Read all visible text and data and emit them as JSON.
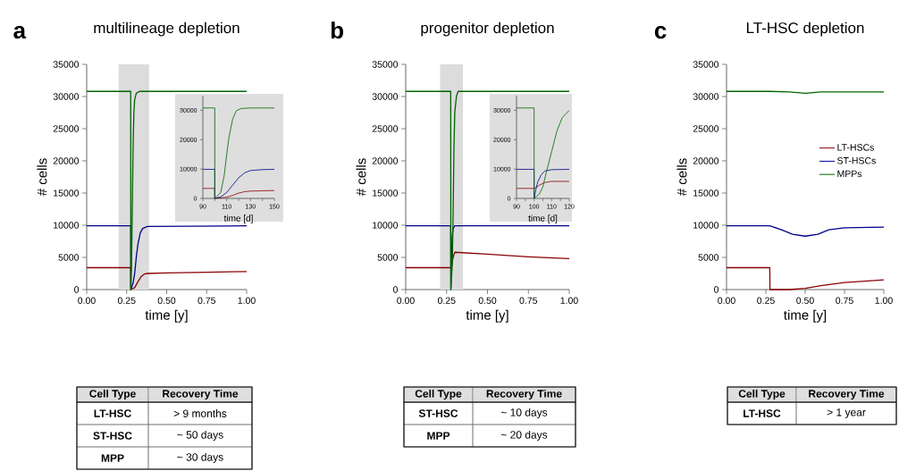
{
  "chart_data": [
    {
      "type": "line",
      "title": "multilineage depletion",
      "xlabel": "time [y]",
      "ylabel": "# cells",
      "annotations": [
        "a"
      ],
      "xlim": [
        0,
        1
      ],
      "ylim": [
        0,
        35000
      ],
      "xticks": [
        {
          "value": 0,
          "label": "0.00"
        },
        {
          "value": 0.25,
          "label": "0.25"
        },
        {
          "value": 0.5,
          "label": "0.50"
        },
        {
          "value": 0.75,
          "label": "0.75"
        },
        {
          "value": 1,
          "label": "1.00"
        }
      ],
      "yticks": [
        0,
        5000,
        10000,
        15000,
        20000,
        25000,
        30000,
        35000
      ],
      "bands": [
        {
          "axis": "x",
          "from": 0.2,
          "to": 0.39,
          "color": "#dcdcdc"
        }
      ],
      "series": [
        {
          "color": "#8b0000",
          "x": [
            0,
            0.275,
            0.276,
            0.3,
            0.32,
            0.34,
            0.36,
            0.38,
            0.5,
            0.75,
            1
          ],
          "values": [
            3400,
            3400,
            0,
            300,
            1200,
            2000,
            2400,
            2500,
            2600,
            2700,
            2800
          ]
        },
        {
          "color": "#00008b",
          "x": [
            0,
            0.275,
            0.276,
            0.29,
            0.3,
            0.31,
            0.32,
            0.335,
            0.35,
            0.38,
            1
          ],
          "values": [
            9900,
            9900,
            0,
            1000,
            2500,
            5000,
            7000,
            8800,
            9500,
            9800,
            9900
          ]
        },
        {
          "color": "#006400",
          "x": [
            0,
            0.275,
            0.276,
            0.28,
            0.285,
            0.29,
            0.295,
            0.3,
            0.31,
            0.33,
            1
          ],
          "values": [
            30800,
            30800,
            0,
            3000,
            12000,
            22000,
            27500,
            29500,
            30500,
            30800,
            30800
          ]
        }
      ]
    },
    {
      "type": "line",
      "xlabel": "time [d]",
      "xlim": [
        90,
        150
      ],
      "ylim": [
        0,
        35000
      ],
      "xticks": [
        90,
        {
          "value": 100,
          "label": null
        },
        110,
        {
          "value": 120,
          "label": null
        },
        130,
        {
          "value": 140,
          "label": null
        },
        150
      ],
      "yticks": [
        0,
        10000,
        20000,
        30000
      ],
      "series": [
        {
          "color": "#8b0000",
          "x": [
            90,
            100,
            100.01,
            110,
            115,
            120,
            125,
            130,
            140,
            150
          ],
          "values": [
            3400,
            3400,
            0,
            400,
            1000,
            1800,
            2300,
            2500,
            2600,
            2700
          ]
        },
        {
          "color": "#00008b",
          "x": [
            90,
            100,
            100.01,
            105,
            110,
            115,
            120,
            125,
            130,
            140,
            150
          ],
          "values": [
            9900,
            9900,
            0,
            500,
            2000,
            4500,
            7000,
            8700,
            9500,
            9800,
            9900
          ]
        },
        {
          "color": "#006400",
          "x": [
            90,
            100,
            100.01,
            105,
            108,
            110,
            112,
            115,
            118,
            122,
            130,
            150
          ],
          "values": [
            30800,
            30800,
            0,
            2000,
            8000,
            15000,
            21000,
            27000,
            29800,
            30600,
            30800,
            30800
          ]
        }
      ]
    },
    {
      "type": "other",
      "annotations": [
        "Cell Type",
        "Recovery Time",
        "LT-HSC",
        "> 9 months",
        "ST-HSC",
        "~ 50 days",
        "MPP",
        "~ 30 days"
      ]
    },
    {
      "type": "line",
      "title": "progenitor depletion",
      "xlabel": "time [y]",
      "ylabel": "# cells",
      "annotations": [
        "b"
      ],
      "xlim": [
        0,
        1
      ],
      "ylim": [
        0,
        35000
      ],
      "xticks": [
        {
          "value": 0,
          "label": "0.00"
        },
        {
          "value": 0.25,
          "label": "0.25"
        },
        {
          "value": 0.5,
          "label": "0.50"
        },
        {
          "value": 0.75,
          "label": "0.75"
        },
        {
          "value": 1,
          "label": "1.00"
        }
      ],
      "yticks": [
        0,
        5000,
        10000,
        15000,
        20000,
        25000,
        30000,
        35000
      ],
      "bands": [
        {
          "axis": "x",
          "from": 0.21,
          "to": 0.35,
          "color": "#dcdcdc"
        }
      ],
      "series": [
        {
          "color": "#8b0000",
          "x": [
            0,
            0.275,
            0.28,
            0.29,
            0.3,
            0.5,
            0.75,
            1
          ],
          "values": [
            3400,
            3400,
            3600,
            5000,
            5800,
            5500,
            5100,
            4800
          ]
        },
        {
          "color": "#00008b",
          "x": [
            0,
            0.275,
            0.276,
            0.28,
            0.285,
            0.29,
            0.3,
            1
          ],
          "values": [
            9900,
            9900,
            0,
            5000,
            8500,
            9500,
            9900,
            9900
          ]
        },
        {
          "color": "#006400",
          "x": [
            0,
            0.275,
            0.276,
            0.285,
            0.29,
            0.295,
            0.3,
            0.31,
            0.32,
            1
          ],
          "values": [
            30800,
            30800,
            0,
            4000,
            12000,
            22000,
            27500,
            30000,
            30800,
            30800
          ]
        }
      ]
    },
    {
      "type": "line",
      "xlabel": "time [d]",
      "xlim": [
        90,
        120
      ],
      "ylim": [
        0,
        35000
      ],
      "xticks": [
        90,
        {
          "value": 95,
          "label": null
        },
        100,
        {
          "value": 105,
          "label": null
        },
        110,
        {
          "value": 115,
          "label": null
        },
        120
      ],
      "yticks": [
        0,
        10000,
        20000,
        30000
      ],
      "series": [
        {
          "color": "#8b0000",
          "x": [
            90,
            100,
            101,
            103,
            106,
            110,
            120
          ],
          "values": [
            3400,
            3400,
            3700,
            4500,
            5400,
            5800,
            5800
          ]
        },
        {
          "color": "#00008b",
          "x": [
            90,
            100,
            100.01,
            101,
            102,
            104,
            106,
            110,
            120
          ],
          "values": [
            9900,
            9900,
            0,
            3000,
            5500,
            8000,
            9300,
            9800,
            9900
          ]
        },
        {
          "color": "#006400",
          "x": [
            90,
            100,
            100.01,
            103,
            105,
            107,
            110,
            113,
            116,
            120
          ],
          "values": [
            30800,
            30800,
            0,
            1500,
            4000,
            9000,
            16000,
            23000,
            27500,
            30000
          ]
        }
      ]
    },
    {
      "type": "other",
      "annotations": [
        "Cell Type",
        "Recovery Time",
        "ST-HSC",
        "~ 10 days",
        "MPP",
        "~ 20 days"
      ]
    },
    {
      "type": "line",
      "title": "LT-HSC depletion",
      "xlabel": "time [y]",
      "ylabel": "# cells",
      "annotations": [
        "c"
      ],
      "xlim": [
        0,
        1
      ],
      "ylim": [
        0,
        35000
      ],
      "xticks": [
        {
          "value": 0,
          "label": "0.00"
        },
        {
          "value": 0.25,
          "label": "0.25"
        },
        {
          "value": 0.5,
          "label": "0.50"
        },
        {
          "value": 0.75,
          "label": "0.75"
        },
        {
          "value": 1,
          "label": "1.00"
        }
      ],
      "yticks": [
        0,
        5000,
        10000,
        15000,
        20000,
        25000,
        30000,
        35000
      ],
      "legend": "right",
      "series": [
        {
          "name": "LT-HSCs",
          "color": "#8b0000",
          "x": [
            0,
            0.275,
            0.276,
            0.4,
            0.5,
            0.6,
            0.75,
            1
          ],
          "values": [
            3400,
            3400,
            0,
            0,
            200,
            600,
            1100,
            1500
          ]
        },
        {
          "name": "ST-HSCs",
          "color": "#00008b",
          "x": [
            0,
            0.275,
            0.35,
            0.42,
            0.5,
            0.58,
            0.65,
            0.75,
            1
          ],
          "values": [
            9900,
            9900,
            9300,
            8600,
            8300,
            8600,
            9300,
            9600,
            9700
          ]
        },
        {
          "name": "MPPs",
          "color": "#006400",
          "x": [
            0,
            0.275,
            0.4,
            0.5,
            0.6,
            0.75,
            1
          ],
          "values": [
            30800,
            30800,
            30700,
            30500,
            30700,
            30700,
            30700
          ]
        }
      ]
    },
    {
      "type": "other",
      "annotations": [
        "Cell Type",
        "Recovery Time",
        "LT-HSC",
        "> 1 year"
      ]
    }
  ]
}
